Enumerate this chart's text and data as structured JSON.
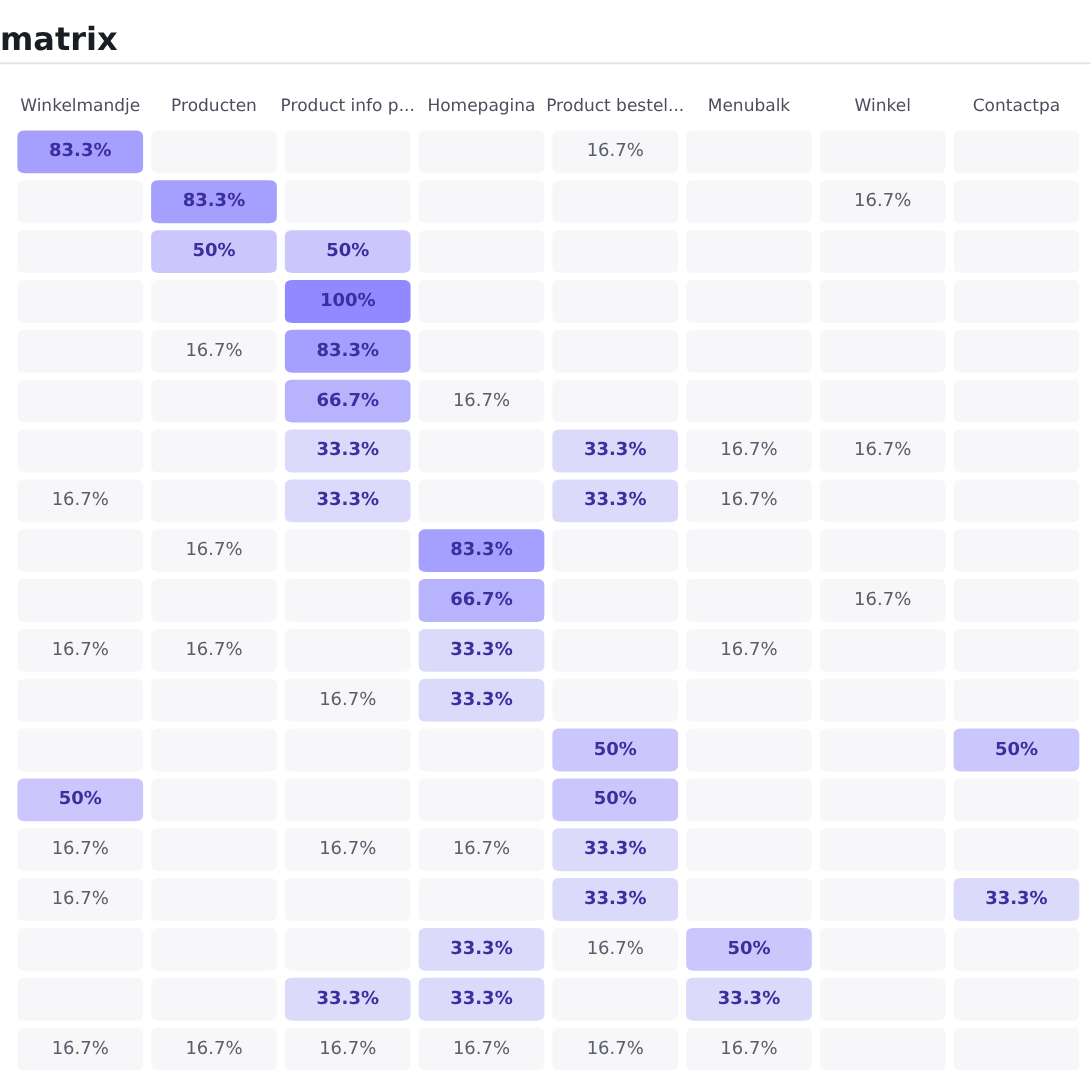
{
  "chart_data": {
    "type": "heatmap",
    "title": "matrix",
    "categories": [
      "Winkelmandje",
      "Producten",
      "Product info p...",
      "Homepagina",
      "Product bestel...",
      "Menubalk",
      "Winkel",
      "Contactpa"
    ],
    "y_categories": [
      null,
      null,
      null,
      null,
      null,
      null,
      null,
      null,
      null,
      null,
      null,
      null,
      null,
      null,
      null,
      null,
      null,
      null,
      null
    ],
    "tick_labels": "x",
    "cells": [
      [
        83.3,
        null,
        null,
        null,
        16.7,
        null,
        null,
        null
      ],
      [
        null,
        83.3,
        null,
        null,
        null,
        null,
        16.7,
        null
      ],
      [
        null,
        50,
        50,
        null,
        null,
        null,
        null,
        null
      ],
      [
        null,
        null,
        100,
        null,
        null,
        null,
        null,
        null
      ],
      [
        null,
        16.7,
        83.3,
        null,
        null,
        null,
        null,
        null
      ],
      [
        null,
        null,
        66.7,
        16.7,
        null,
        null,
        null,
        null
      ],
      [
        null,
        null,
        33.3,
        null,
        33.3,
        16.7,
        16.7,
        null
      ],
      [
        16.7,
        null,
        33.3,
        null,
        33.3,
        16.7,
        null,
        null
      ],
      [
        null,
        16.7,
        null,
        83.3,
        null,
        null,
        null,
        null
      ],
      [
        null,
        null,
        null,
        66.7,
        null,
        null,
        16.7,
        null
      ],
      [
        16.7,
        16.7,
        null,
        33.3,
        null,
        16.7,
        null,
        null
      ],
      [
        null,
        null,
        16.7,
        33.3,
        null,
        null,
        null,
        null
      ],
      [
        null,
        null,
        null,
        null,
        50,
        null,
        null,
        50
      ],
      [
        50,
        null,
        null,
        null,
        50,
        null,
        null,
        null
      ],
      [
        16.7,
        null,
        16.7,
        16.7,
        33.3,
        null,
        null,
        null
      ],
      [
        16.7,
        null,
        null,
        null,
        33.3,
        null,
        null,
        33.3
      ],
      [
        null,
        null,
        null,
        33.3,
        16.7,
        50,
        null,
        null
      ],
      [
        null,
        null,
        33.3,
        33.3,
        null,
        33.3,
        null,
        null
      ],
      [
        16.7,
        16.7,
        16.7,
        16.7,
        16.7,
        16.7,
        null,
        null
      ]
    ],
    "cell_labels": [
      [
        "83.3%",
        null,
        null,
        null,
        "16.7%",
        null,
        null,
        null
      ],
      [
        null,
        "83.3%",
        null,
        null,
        null,
        null,
        "16.7%",
        null
      ],
      [
        null,
        "50%",
        "50%",
        null,
        null,
        null,
        null,
        null
      ],
      [
        null,
        null,
        "100%",
        null,
        null,
        null,
        null,
        null
      ],
      [
        null,
        "16.7%",
        "83.3%",
        null,
        null,
        null,
        null,
        null
      ],
      [
        null,
        null,
        "66.7%",
        "16.7%",
        null,
        null,
        null,
        null
      ],
      [
        null,
        null,
        "33.3%",
        null,
        "33.3%",
        "16.7%",
        "16.7%",
        null
      ],
      [
        "16.7%",
        null,
        "33.3%",
        null,
        "33.3%",
        "16.7%",
        null,
        null
      ],
      [
        null,
        "16.7%",
        null,
        "83.3%",
        null,
        null,
        null,
        null
      ],
      [
        null,
        null,
        null,
        "66.7%",
        null,
        null,
        "16.7%",
        null
      ],
      [
        "16.7%",
        "16.7%",
        null,
        "33.3%",
        null,
        "16.7%",
        null,
        null
      ],
      [
        null,
        null,
        "16.7%",
        "33.3%",
        null,
        null,
        null,
        null
      ],
      [
        null,
        null,
        null,
        null,
        "50%",
        null,
        null,
        "50%"
      ],
      [
        "50%",
        null,
        null,
        null,
        "50%",
        null,
        null,
        null
      ],
      [
        "16.7%",
        null,
        "16.7%",
        "16.7%",
        "33.3%",
        null,
        null,
        null
      ],
      [
        "16.7%",
        null,
        null,
        null,
        "33.3%",
        null,
        null,
        "33.3%"
      ],
      [
        null,
        null,
        null,
        "33.3%",
        "16.7%",
        "50%",
        null,
        null
      ],
      [
        null,
        null,
        "33.3%",
        "33.3%",
        null,
        "33.3%",
        null,
        null
      ],
      [
        "16.7%",
        "16.7%",
        "16.7%",
        "16.7%",
        "16.7%",
        "16.7%",
        null,
        null
      ]
    ]
  }
}
